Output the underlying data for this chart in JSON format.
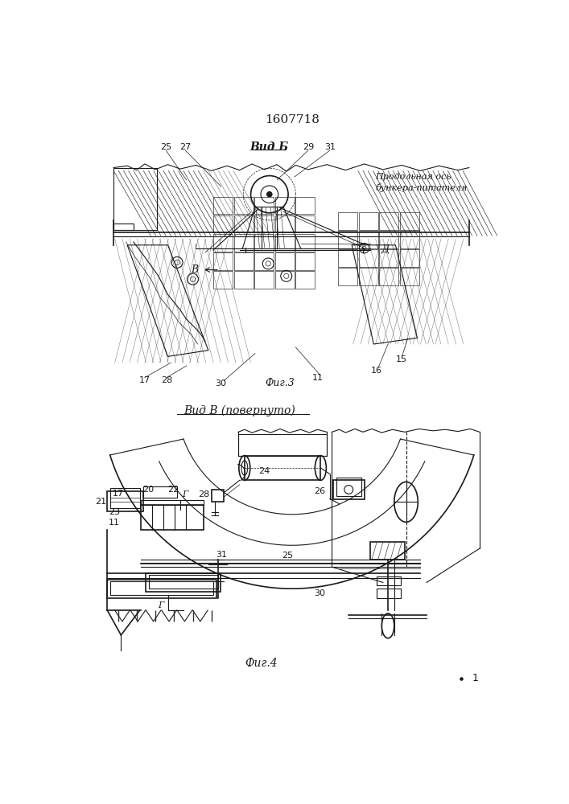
{
  "title": "1607718",
  "background_color": "#ffffff",
  "line_color": "#1a1a1a",
  "fig3_caption": "Фиг.3",
  "fig4_caption": "Фиг.4",
  "vid_b_label": "Вид Б",
  "vid_v_label": "Вид В (повернуто)",
  "annotation_line1": "Продольная ось",
  "annotation_line2": "бункера-питателя"
}
